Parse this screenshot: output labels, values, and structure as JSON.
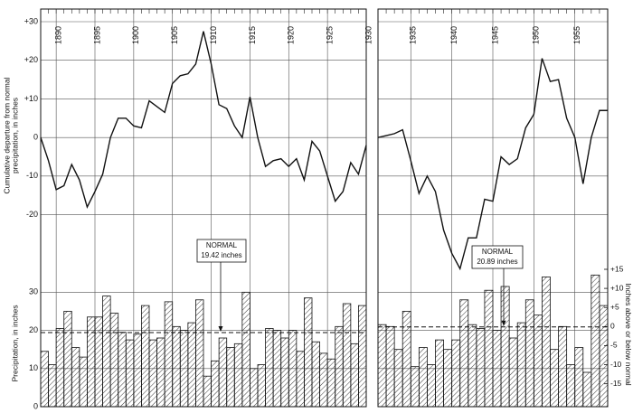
{
  "chart_data": {
    "type": "bar-line",
    "ylabel": [
      "Cumulative departure from normal",
      "precipitation, in inches"
    ],
    "ylim": [
      -40,
      30
    ],
    "yticks": [
      {
        "value": 30,
        "label": "+30"
      },
      {
        "value": 20,
        "label": "+20"
      },
      {
        "value": 10,
        "label": "+10"
      },
      0,
      -10,
      -20
    ],
    "precip_label": "Precipitation, in inches",
    "precip_lim": [
      0,
      36
    ],
    "precip_ticks": [
      0,
      10,
      20,
      30
    ],
    "y2label": "Inches above or below normal",
    "y2lim": [
      -21,
      15
    ],
    "y2ticks": [
      {
        "value": 15,
        "label": "+15"
      },
      {
        "value": 10,
        "label": "+10"
      },
      {
        "value": 5,
        "label": "+5"
      },
      0,
      -5,
      -10,
      -15
    ],
    "grid": true,
    "color": "#111111",
    "panels": [
      {
        "xlim": [
          1888,
          1930
        ],
        "xticks": [
          1890,
          1895,
          1900,
          1905,
          1910,
          1915,
          1920,
          1925,
          1930
        ],
        "departure": {
          "x": [
            1888,
            1889,
            1890,
            1891,
            1892,
            1893,
            1894,
            1895,
            1896,
            1897,
            1898,
            1899,
            1900,
            1901,
            1902,
            1903,
            1904,
            1905,
            1906,
            1907,
            1908,
            1909,
            1910,
            1911,
            1912,
            1913,
            1914,
            1915,
            1916,
            1917,
            1918,
            1919,
            1920,
            1921,
            1922,
            1923,
            1924,
            1925,
            1926,
            1927,
            1928,
            1929,
            1930
          ],
          "values": [
            0,
            -6,
            -13.5,
            -12.5,
            -7,
            -11,
            -18,
            -14,
            -9.5,
            0,
            5,
            5,
            3,
            2.5,
            9.5,
            8,
            6.5,
            14,
            16,
            16.5,
            19,
            27.5,
            19,
            8.5,
            7.5,
            3,
            0,
            10.5,
            0,
            -7.5,
            -6,
            -5.5,
            -7.5,
            -5.5,
            -11,
            -1,
            -3.5,
            -10,
            -16.5,
            -14,
            -6.5,
            -9.5,
            -2
          ]
        },
        "precipitation": {
          "x": [
            1888,
            1889,
            1890,
            1891,
            1892,
            1893,
            1894,
            1895,
            1896,
            1897,
            1898,
            1899,
            1900,
            1901,
            1902,
            1903,
            1904,
            1905,
            1906,
            1907,
            1908,
            1909,
            1910,
            1911,
            1912,
            1913,
            1914,
            1915,
            1916,
            1917,
            1918,
            1919,
            1920,
            1921,
            1922,
            1923,
            1924,
            1925,
            1926,
            1927,
            1928,
            1929
          ],
          "values": [
            14.5,
            11,
            20.5,
            25,
            15.5,
            13,
            23.5,
            23.5,
            29,
            24.5,
            19.5,
            17.5,
            19,
            26.5,
            17.5,
            18,
            27.5,
            21,
            20,
            22,
            28,
            8,
            12,
            18,
            15.5,
            16.5,
            30,
            10,
            11,
            20.5,
            20,
            18,
            20,
            14.5,
            28.5,
            17,
            14,
            12.5,
            21,
            27,
            16.5,
            26.5
          ]
        },
        "normal": {
          "title": "NORMAL",
          "value": 19.42,
          "label": "19.42 inches"
        }
      },
      {
        "xlim": [
          1931,
          1959
        ],
        "xticks": [
          1935,
          1940,
          1945,
          1950,
          1955
        ],
        "departure": {
          "x": [
            1931,
            1932,
            1933,
            1934,
            1935,
            1936,
            1937,
            1938,
            1939,
            1940,
            1941,
            1942,
            1943,
            1944,
            1945,
            1946,
            1947,
            1948,
            1949,
            1950,
            1951,
            1952,
            1953,
            1954,
            1955,
            1956,
            1957,
            1958,
            1959
          ],
          "values": [
            0,
            0.5,
            1,
            2,
            -6,
            -14.5,
            -10,
            -14,
            -24,
            -30,
            -34,
            -26,
            -26,
            -16,
            -16.5,
            -5,
            -7,
            -5.5,
            2.5,
            6,
            20.5,
            14.5,
            15,
            5,
            0,
            -12,
            0,
            7,
            7
          ]
        },
        "precipitation": {
          "x": [
            1931,
            1932,
            1933,
            1934,
            1935,
            1936,
            1937,
            1938,
            1939,
            1940,
            1941,
            1942,
            1943,
            1944,
            1945,
            1946,
            1947,
            1948,
            1949,
            1950,
            1951,
            1952,
            1953,
            1954,
            1955,
            1956,
            1957,
            1958
          ],
          "values": [
            21.5,
            21,
            15,
            25,
            10.5,
            15.5,
            11,
            17.5,
            15,
            17.5,
            28,
            21.5,
            20.5,
            30.5,
            20,
            31.5,
            18,
            22,
            28,
            24,
            34,
            15,
            21,
            11,
            15.5,
            9,
            34.5,
            26.5
          ]
        },
        "normal": {
          "title": "NORMAL",
          "value": 20.89,
          "label": "20.89 inches"
        }
      }
    ]
  }
}
